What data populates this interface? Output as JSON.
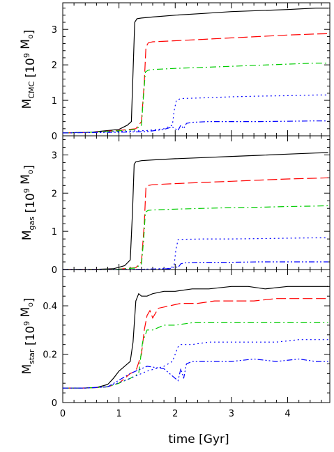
{
  "chart_data": {
    "type": "line",
    "xlabel": "time [Gyr]",
    "xlim": [
      0,
      4.75
    ],
    "xticks": [
      0,
      1,
      2,
      3,
      4
    ],
    "panels": [
      {
        "ylabel": {
          "main": "M",
          "sub": "CMC",
          "unit_open": " [10",
          "sup": "9",
          "unit_close": " M",
          "unit_sub": "o",
          "end": "]"
        },
        "ylim": [
          0,
          3.75
        ],
        "yticks": [
          0,
          1,
          2,
          3
        ],
        "series": [
          {
            "color": "#000000",
            "dash": "solid",
            "x": [
              0,
              0.5,
              1.0,
              1.15,
              1.22,
              1.25,
              1.28,
              1.32,
              1.4,
              1.6,
              2.0,
              2.5,
              3.0,
              3.5,
              4.0,
              4.5,
              4.72
            ],
            "y": [
              0.08,
              0.1,
              0.18,
              0.3,
              0.4,
              1.8,
              3.2,
              3.3,
              3.32,
              3.35,
              3.4,
              3.45,
              3.5,
              3.53,
              3.56,
              3.6,
              3.6
            ]
          },
          {
            "color": "#ff0000",
            "dash": "long",
            "x": [
              0,
              0.5,
              1.0,
              1.3,
              1.4,
              1.45,
              1.48,
              1.52,
              1.6,
              2.0,
              2.5,
              3.0,
              3.5,
              4.0,
              4.5,
              4.72
            ],
            "y": [
              0.08,
              0.1,
              0.15,
              0.2,
              0.4,
              1.5,
              2.5,
              2.62,
              2.65,
              2.68,
              2.72,
              2.76,
              2.8,
              2.84,
              2.87,
              2.88
            ]
          },
          {
            "color": "#00cc00",
            "dash": "dashdot",
            "x": [
              0,
              0.5,
              1.0,
              1.3,
              1.4,
              1.43,
              1.47,
              1.52,
              1.6,
              2.0,
              2.5,
              3.0,
              3.5,
              4.0,
              4.5,
              4.72
            ],
            "y": [
              0.08,
              0.1,
              0.14,
              0.18,
              0.3,
              1.0,
              1.8,
              1.85,
              1.87,
              1.9,
              1.93,
              1.96,
              1.99,
              2.02,
              2.05,
              2.05
            ]
          },
          {
            "color": "#0000ff",
            "dash": "dot",
            "x": [
              0,
              0.5,
              1.0,
              1.5,
              1.8,
              1.95,
              1.98,
              2.02,
              2.1,
              2.5,
              3.0,
              3.5,
              4.0,
              4.5,
              4.72
            ],
            "y": [
              0.08,
              0.1,
              0.12,
              0.15,
              0.2,
              0.3,
              0.7,
              1.0,
              1.05,
              1.07,
              1.1,
              1.12,
              1.13,
              1.15,
              1.15
            ]
          },
          {
            "color": "#0000ff",
            "dash": "dashdotdot",
            "x": [
              0,
              0.5,
              1.0,
              1.5,
              1.8,
              1.95,
              2.05,
              2.1,
              2.15,
              2.2,
              2.3,
              2.6,
              3.0,
              3.5,
              4.0,
              4.5,
              4.72
            ],
            "y": [
              0.08,
              0.09,
              0.1,
              0.12,
              0.18,
              0.25,
              0.15,
              0.3,
              0.2,
              0.35,
              0.38,
              0.4,
              0.4,
              0.4,
              0.41,
              0.42,
              0.42
            ]
          }
        ]
      },
      {
        "ylabel": {
          "main": "M",
          "sub": "gas",
          "unit_open": " [10",
          "sup": "9",
          "unit_close": " M",
          "unit_sub": "o",
          "end": "]"
        },
        "ylim": [
          0,
          3.5
        ],
        "yticks": [
          0,
          1,
          2,
          3
        ],
        "series": [
          {
            "color": "#000000",
            "dash": "solid",
            "x": [
              0,
              0.5,
              0.9,
              1.1,
              1.2,
              1.24,
              1.27,
              1.3,
              1.4,
              1.6,
              2.0,
              2.5,
              3.0,
              3.5,
              4.0,
              4.5,
              4.72
            ],
            "y": [
              0.0,
              0.0,
              0.02,
              0.1,
              0.25,
              1.5,
              2.75,
              2.82,
              2.85,
              2.87,
              2.9,
              2.93,
              2.96,
              2.99,
              3.02,
              3.05,
              3.06
            ]
          },
          {
            "color": "#ff0000",
            "dash": "long",
            "x": [
              0,
              0.5,
              1.0,
              1.3,
              1.4,
              1.45,
              1.48,
              1.52,
              1.6,
              2.0,
              2.5,
              3.0,
              3.5,
              4.0,
              4.5,
              4.72
            ],
            "y": [
              0.0,
              0.0,
              0.01,
              0.05,
              0.2,
              1.2,
              2.15,
              2.2,
              2.22,
              2.25,
              2.28,
              2.31,
              2.34,
              2.37,
              2.39,
              2.4
            ]
          },
          {
            "color": "#00cc00",
            "dash": "dashdot",
            "x": [
              0,
              0.5,
              1.0,
              1.3,
              1.4,
              1.44,
              1.47,
              1.52,
              1.6,
              2.0,
              2.5,
              3.0,
              3.5,
              4.0,
              4.5,
              4.72
            ],
            "y": [
              0.0,
              0.0,
              0.01,
              0.04,
              0.15,
              0.8,
              1.5,
              1.55,
              1.56,
              1.58,
              1.6,
              1.62,
              1.63,
              1.65,
              1.66,
              1.67
            ]
          },
          {
            "color": "#0000ff",
            "dash": "dot",
            "x": [
              0,
              0.5,
              1.0,
              1.5,
              1.9,
              1.98,
              2.01,
              2.05,
              2.1,
              2.5,
              3.0,
              3.5,
              4.0,
              4.5,
              4.72
            ],
            "y": [
              0.0,
              0.0,
              0.0,
              0.01,
              0.03,
              0.1,
              0.5,
              0.78,
              0.79,
              0.8,
              0.8,
              0.81,
              0.82,
              0.83,
              0.83
            ]
          },
          {
            "color": "#0000ff",
            "dash": "dashdotdot",
            "x": [
              0,
              0.5,
              1.0,
              1.5,
              1.9,
              2.0,
              2.05,
              2.1,
              2.2,
              2.5,
              3.0,
              3.5,
              4.0,
              4.5,
              4.72
            ],
            "y": [
              0.0,
              0.0,
              0.0,
              0.01,
              0.02,
              0.08,
              0.05,
              0.15,
              0.18,
              0.19,
              0.19,
              0.2,
              0.2,
              0.2,
              0.2
            ]
          }
        ]
      },
      {
        "ylabel": {
          "main": "M",
          "sub": "star",
          "unit_open": " [10",
          "sup": "9",
          "unit_close": " M",
          "unit_sub": "o",
          "end": "]"
        },
        "ylim": [
          0,
          0.55
        ],
        "yticks": [
          0,
          0.2,
          0.4
        ],
        "series": [
          {
            "color": "#000000",
            "dash": "solid",
            "x": [
              0,
              0.3,
              0.6,
              0.8,
              0.9,
              1.0,
              1.1,
              1.2,
              1.25,
              1.3,
              1.35,
              1.4,
              1.5,
              1.6,
              1.8,
              2.0,
              2.3,
              2.6,
              3.0,
              3.3,
              3.6,
              4.0,
              4.3,
              4.6,
              4.72
            ],
            "y": [
              0.06,
              0.06,
              0.062,
              0.075,
              0.1,
              0.13,
              0.15,
              0.17,
              0.25,
              0.42,
              0.45,
              0.44,
              0.44,
              0.45,
              0.46,
              0.46,
              0.47,
              0.47,
              0.48,
              0.48,
              0.47,
              0.48,
              0.48,
              0.48,
              0.48
            ]
          },
          {
            "color": "#ff0000",
            "dash": "long",
            "x": [
              0,
              0.4,
              0.8,
              1.0,
              1.1,
              1.2,
              1.3,
              1.4,
              1.45,
              1.5,
              1.55,
              1.6,
              1.7,
              1.9,
              2.1,
              2.4,
              2.7,
              3.0,
              3.4,
              3.8,
              4.2,
              4.5,
              4.72
            ],
            "y": [
              0.06,
              0.06,
              0.065,
              0.08,
              0.1,
              0.12,
              0.13,
              0.2,
              0.3,
              0.36,
              0.38,
              0.35,
              0.39,
              0.4,
              0.41,
              0.41,
              0.42,
              0.42,
              0.42,
              0.43,
              0.43,
              0.43,
              0.43
            ]
          },
          {
            "color": "#00cc00",
            "dash": "dashdot",
            "x": [
              0,
              0.4,
              0.8,
              1.0,
              1.2,
              1.35,
              1.42,
              1.5,
              1.6,
              1.8,
              2.0,
              2.3,
              2.6,
              3.0,
              3.4,
              3.8,
              4.2,
              4.5,
              4.72
            ],
            "y": [
              0.06,
              0.06,
              0.065,
              0.08,
              0.1,
              0.12,
              0.25,
              0.3,
              0.3,
              0.32,
              0.32,
              0.33,
              0.33,
              0.33,
              0.33,
              0.33,
              0.33,
              0.33,
              0.33
            ]
          },
          {
            "color": "#0000ff",
            "dash": "dot",
            "x": [
              0,
              0.4,
              0.8,
              1.2,
              1.5,
              1.8,
              1.95,
              2.0,
              2.05,
              2.1,
              2.3,
              2.6,
              3.0,
              3.4,
              3.8,
              4.2,
              4.5,
              4.72
            ],
            "y": [
              0.06,
              0.06,
              0.065,
              0.1,
              0.13,
              0.15,
              0.17,
              0.2,
              0.23,
              0.24,
              0.24,
              0.25,
              0.25,
              0.25,
              0.25,
              0.26,
              0.26,
              0.26
            ]
          },
          {
            "color": "#0000ff",
            "dash": "dashdotdot",
            "x": [
              0,
              0.4,
              0.8,
              1.2,
              1.5,
              1.8,
              1.95,
              2.05,
              2.1,
              2.15,
              2.2,
              2.3,
              2.6,
              3.0,
              3.4,
              3.8,
              4.2,
              4.5,
              4.72
            ],
            "y": [
              0.06,
              0.06,
              0.065,
              0.12,
              0.15,
              0.14,
              0.11,
              0.09,
              0.14,
              0.1,
              0.16,
              0.17,
              0.17,
              0.17,
              0.18,
              0.17,
              0.18,
              0.17,
              0.17
            ]
          }
        ]
      }
    ]
  }
}
